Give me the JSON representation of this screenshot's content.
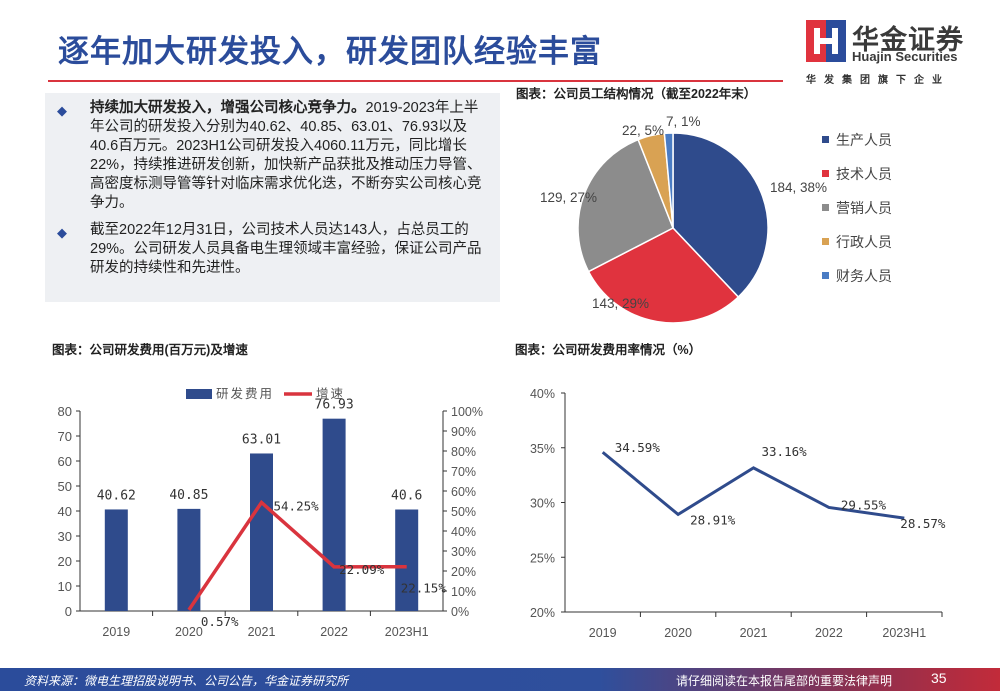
{
  "header": {
    "title": "逐年加大研发投入，研发团队经验丰富"
  },
  "logo": {
    "cn": "华金证券",
    "en": "Huajin Securities",
    "sub": "华发集团旗下企业",
    "colors": {
      "red": "#e0333e",
      "blue": "#2b4c9b"
    }
  },
  "bullets": [
    {
      "bold": "持续加大研发投入，增强公司核心竞争力。",
      "text": "2019-2023年上半年公司的研发投入分别为40.62、40.85、63.01、76.93以及40.6百万元。2023H1公司研发投入4060.11万元，同比增长22%，持续推进研发创新，加快新产品获批及推动压力导管、高密度标测导管等针对临床需求优化迭，不断夯实公司核心竞争力。"
    },
    {
      "bold": "",
      "text": "截至2022年12月31日，公司技术人员达143人，占总员工的29%。公司研发人员具备电生理领域丰富经验，保证公司产品研发的持续性和先进性。"
    }
  ],
  "chart_data": [
    {
      "type": "pie",
      "title": "图表：公司员工结构情况（截至2022年末）",
      "legend_position": "right",
      "slices": [
        {
          "name": "生产人员",
          "value": 184,
          "label": "184, 38%",
          "color": "#2f4b8c"
        },
        {
          "name": "技术人员",
          "value": 143,
          "label": "143, 29%",
          "color": "#e0333e"
        },
        {
          "name": "营销人员",
          "value": 129,
          "label": "129, 27%",
          "color": "#8c8c8c"
        },
        {
          "name": "行政人员",
          "value": 22,
          "label": "22, 5%",
          "color": "#d9a253"
        },
        {
          "name": "财务人员",
          "value": 7,
          "label": "7, 1%",
          "color": "#4a7cc4"
        }
      ]
    },
    {
      "type": "bar+line",
      "title": "图表：公司研发费用(百万元)及增速",
      "categories": [
        "2019",
        "2020",
        "2021",
        "2022",
        "2023H1"
      ],
      "series": [
        {
          "name": "研发费用",
          "type": "bar",
          "axis": "left",
          "values": [
            40.62,
            40.85,
            63.01,
            76.93,
            40.6
          ],
          "labels": [
            "40.62",
            "40.85",
            "63.01",
            "76.93",
            "40.6"
          ],
          "color": "#2f4b8c"
        },
        {
          "name": "增速",
          "type": "line",
          "axis": "right",
          "values": [
            null,
            0.57,
            54.25,
            22.09,
            22.15
          ],
          "labels": [
            "",
            "0.57%",
            "54.25%",
            "22.09%",
            "22.15%"
          ],
          "color": "#d9343e"
        }
      ],
      "ylim": [
        0,
        80
      ],
      "yticks": [
        "0",
        "10",
        "20",
        "30",
        "40",
        "50",
        "60",
        "70",
        "80"
      ],
      "y2lim": [
        0,
        100
      ],
      "y2ticks": [
        "0%",
        "10%",
        "20%",
        "30%",
        "40%",
        "50%",
        "60%",
        "70%",
        "80%",
        "90%",
        "100%"
      ],
      "legend_position": "top"
    },
    {
      "type": "line",
      "title": "图表：公司研发费用率情况（%）",
      "categories": [
        "2019",
        "2020",
        "2021",
        "2022",
        "2023H1"
      ],
      "values": [
        34.59,
        28.91,
        33.16,
        29.55,
        28.57
      ],
      "labels": [
        "34.59%",
        "28.91%",
        "33.16%",
        "29.55%",
        "28.57%"
      ],
      "ylim": [
        20,
        40
      ],
      "yticks": [
        "20%",
        "25%",
        "30%",
        "35%",
        "40%"
      ],
      "color": "#2f4b8c"
    }
  ],
  "footer": {
    "source": "资料来源：微电生理招股说明书、公司公告，华金证券研究所",
    "disclaimer": "请仔细阅读在本报告尾部的重要法律声明",
    "page": "35"
  }
}
